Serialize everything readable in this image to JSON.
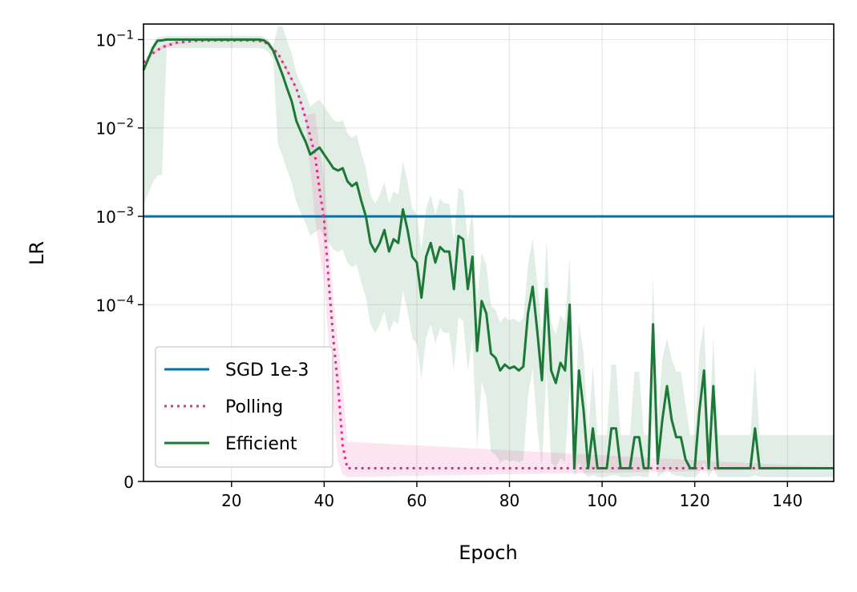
{
  "chart_data": {
    "type": "line",
    "xlabel": "Epoch",
    "ylabel": "LR",
    "xlim": [
      1,
      150
    ],
    "y_scale": "symlog",
    "y_linthresh": 1e-05,
    "y_top": 0.15,
    "x_ticks": [
      20,
      40,
      60,
      80,
      100,
      120,
      140
    ],
    "x_tick_labels": [
      "20",
      "40",
      "60",
      "80",
      "100",
      "120",
      "140"
    ],
    "y_ticks": [
      {
        "value": 0.1,
        "base": "10",
        "exp": "−1"
      },
      {
        "value": 0.01,
        "base": "10",
        "exp": "−2"
      },
      {
        "value": 0.001,
        "base": "10",
        "exp": "−3"
      },
      {
        "value": 0.0001,
        "base": "10",
        "exp": "−4"
      },
      {
        "value": 0,
        "base": "0",
        "exp": ""
      }
    ],
    "grid": true,
    "legend_position": "lower-left",
    "series": [
      {
        "name": "SGD 1e-3",
        "color": "#0072b2",
        "style": "solid",
        "x": [
          1,
          150
        ],
        "y": [
          0.001,
          0.001
        ]
      },
      {
        "name": "Polling",
        "color": "#e7298a",
        "style": "dotted",
        "x": [
          1,
          3,
          5,
          8,
          12,
          16,
          20,
          24,
          27,
          30,
          32,
          34,
          36,
          38,
          39,
          40,
          41,
          42,
          43,
          44,
          45,
          150
        ],
        "y": [
          0.055,
          0.07,
          0.082,
          0.092,
          0.097,
          0.098,
          0.098,
          0.098,
          0.096,
          0.07,
          0.045,
          0.028,
          0.013,
          0.005,
          0.002,
          0.0009,
          0.00018,
          4e-05,
          1.2e-05,
          4e-06,
          1.5e-06,
          1.5e-06
        ]
      },
      {
        "name": "Efficient",
        "color": "#1b7837",
        "style": "solid",
        "x": [
          1,
          2,
          3,
          4,
          5,
          6,
          8,
          10,
          15,
          20,
          25,
          26,
          27,
          28,
          29,
          30,
          31,
          32,
          33,
          34,
          35,
          36,
          37,
          38,
          39,
          40,
          41,
          42,
          43,
          44,
          45,
          46,
          47,
          48,
          49,
          50,
          51,
          52,
          53,
          54,
          55,
          56,
          57,
          58,
          59,
          60,
          61,
          62,
          63,
          64,
          65,
          66,
          67,
          68,
          69,
          70,
          71,
          72,
          73,
          74,
          75,
          76,
          77,
          78,
          79,
          80,
          81,
          82,
          83,
          84,
          85,
          86,
          87,
          88,
          89,
          90,
          91,
          92,
          93,
          94,
          95,
          96,
          97,
          98,
          99,
          100,
          101,
          102,
          103,
          104,
          105,
          106,
          107,
          108,
          109,
          110,
          111,
          112,
          113,
          114,
          115,
          116,
          117,
          118,
          119,
          120,
          121,
          122,
          123,
          124,
          125,
          126,
          130,
          132,
          133,
          134,
          140,
          150
        ],
        "y": [
          0.045,
          0.06,
          0.08,
          0.097,
          0.098,
          0.1,
          0.1,
          0.1,
          0.1,
          0.1,
          0.1,
          0.1,
          0.098,
          0.09,
          0.075,
          0.055,
          0.04,
          0.028,
          0.02,
          0.012,
          0.009,
          0.007,
          0.005,
          0.0055,
          0.006,
          0.005,
          0.0042,
          0.0035,
          0.0033,
          0.0035,
          0.0025,
          0.0022,
          0.0024,
          0.0015,
          0.001,
          0.0005,
          0.0004,
          0.0005,
          0.0007,
          0.0004,
          0.00055,
          0.0005,
          0.0012,
          0.0007,
          0.00035,
          0.0003,
          0.00012,
          0.00035,
          0.0005,
          0.0003,
          0.00045,
          0.0004,
          0.0004,
          0.00015,
          0.0006,
          0.00055,
          0.00015,
          0.00035,
          3e-05,
          0.00011,
          8e-05,
          2.8e-05,
          2.5e-05,
          1.8e-05,
          2.1e-05,
          1.9e-05,
          2e-05,
          1.8e-05,
          2e-05,
          8e-05,
          0.00016,
          5e-05,
          1.4e-05,
          0.00015,
          1.8e-05,
          1.3e-05,
          2.2e-05,
          1.8e-05,
          0.0001,
          1.5e-06,
          1.8e-05,
          8e-06,
          1.5e-06,
          6e-06,
          1.5e-06,
          1.5e-06,
          1.5e-06,
          6e-06,
          6e-06,
          1.5e-06,
          1.5e-06,
          1.5e-06,
          5e-06,
          5e-06,
          1.5e-06,
          1.5e-06,
          6e-05,
          2e-06,
          7e-06,
          1.2e-05,
          7e-06,
          5e-06,
          5e-06,
          2.5e-06,
          1.5e-06,
          1.5e-06,
          8e-06,
          1.8e-05,
          1.5e-06,
          1.2e-05,
          1.5e-06,
          1.5e-06,
          1.5e-06,
          1.5e-06,
          6e-06,
          1.5e-06,
          1.5e-06,
          1.5e-06
        ]
      }
    ]
  }
}
